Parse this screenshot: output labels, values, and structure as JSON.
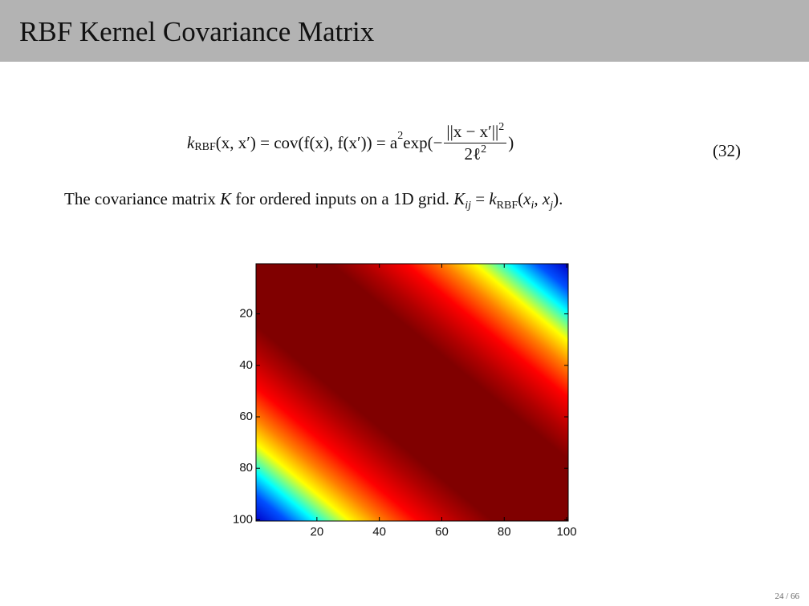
{
  "header": {
    "title": "RBF Kernel Covariance Matrix"
  },
  "equation": {
    "pieces": [
      "k",
      "RBF",
      "(x, x′) = cov(f(x), f(x′)) = a",
      "2",
      " exp(−",
      "||x − x′||",
      "2",
      "2ℓ",
      "2",
      ")"
    ],
    "number": "(32)"
  },
  "sentence": [
    "The covariance matrix ",
    "K",
    " for ordered inputs on a 1D grid. ",
    "K",
    "ij",
    " = ",
    "k",
    "RBF",
    "(",
    "x",
    "i",
    ", ",
    "x",
    "j",
    ")."
  ],
  "chart_data": {
    "type": "heatmap",
    "xlim": [
      0.5,
      100.5
    ],
    "ylim": [
      0.5,
      100.5
    ],
    "y_reversed": true,
    "xticks": [
      20,
      40,
      60,
      80,
      100
    ],
    "yticks": [
      20,
      40,
      60,
      80,
      100
    ]
  },
  "page_number": "24 / 66"
}
